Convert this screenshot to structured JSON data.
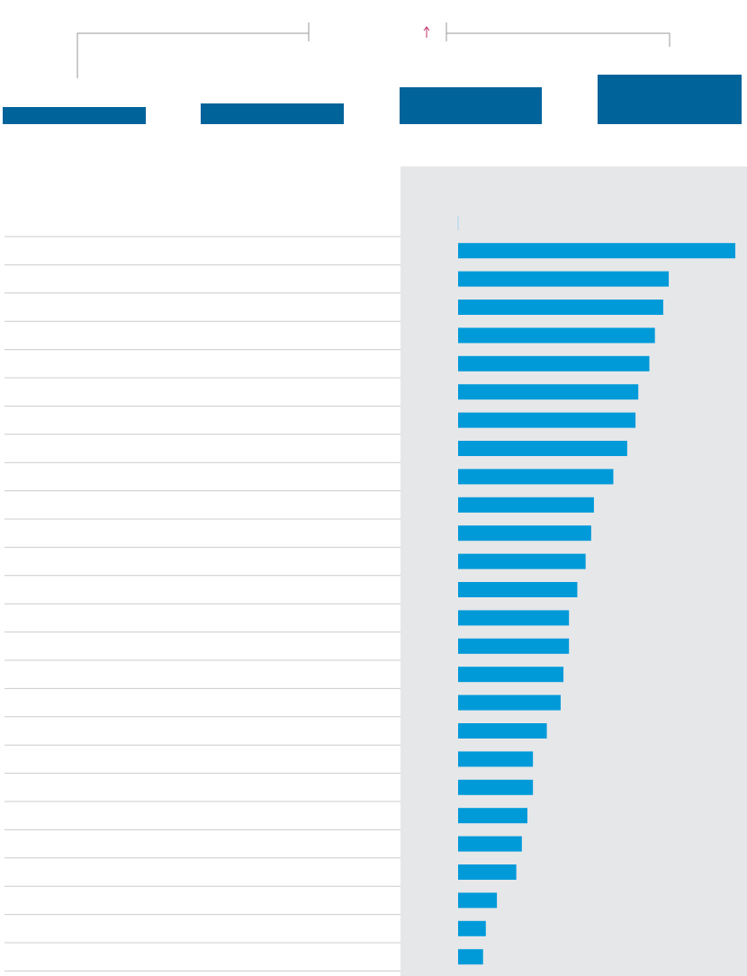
{
  "chart_data": {
    "type": "hbar",
    "color": "#009ad9",
    "values": [
      100,
      76,
      74,
      71,
      69,
      65,
      64,
      61,
      56,
      49,
      48,
      46,
      43,
      40,
      40,
      38,
      37,
      32,
      27,
      27,
      25,
      23,
      21,
      14,
      10,
      9
    ],
    "xlim": [
      0,
      100
    ]
  }
}
